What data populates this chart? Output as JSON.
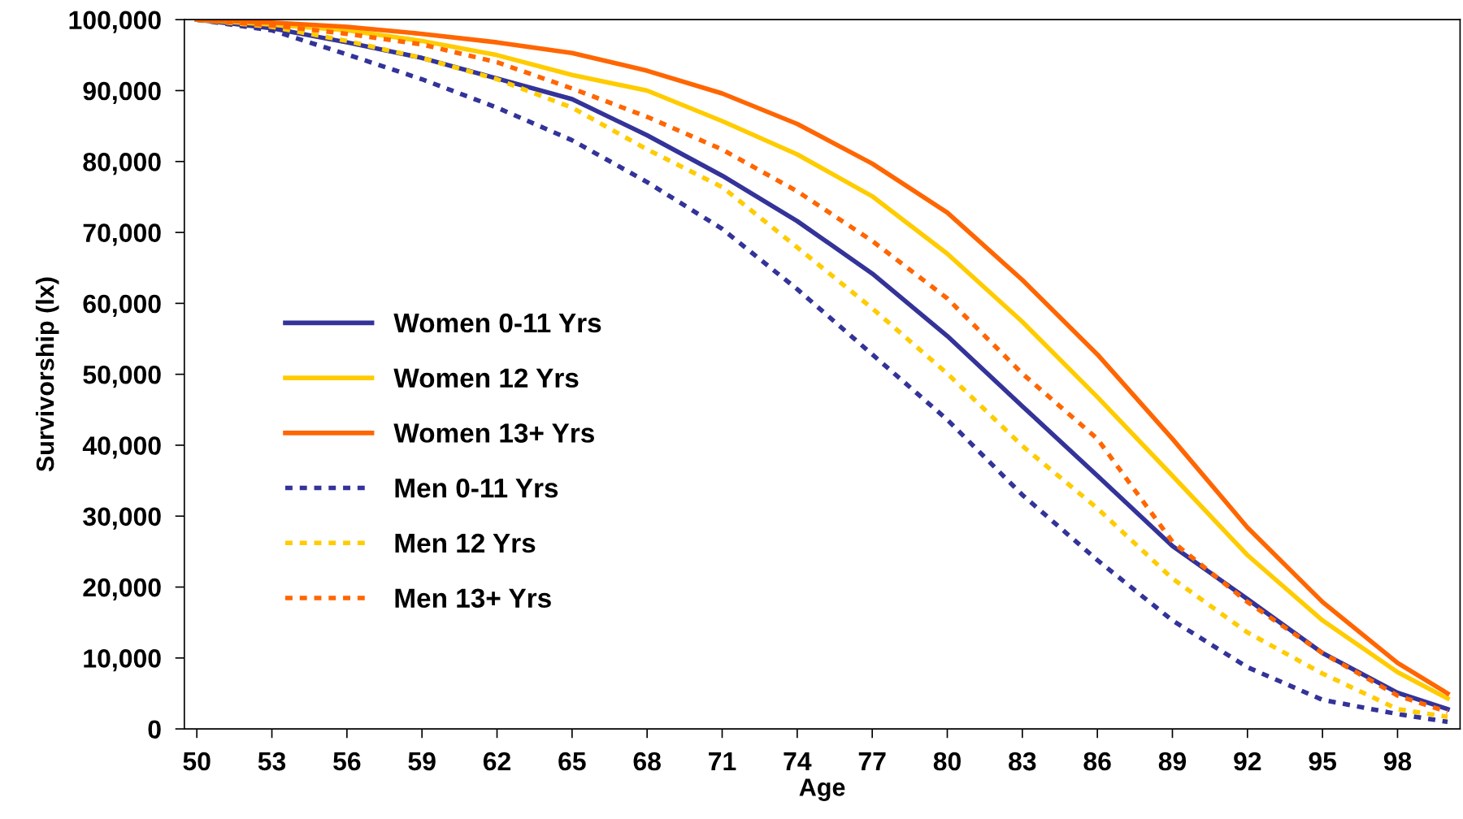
{
  "chart_data": {
    "type": "line",
    "xlabel": "Age",
    "ylabel": "Survivorship (lx)",
    "x": [
      50,
      53,
      56,
      59,
      62,
      65,
      68,
      71,
      74,
      77,
      80,
      83,
      86,
      89,
      92,
      95,
      98,
      100
    ],
    "xlim": [
      49.5,
      100.5
    ],
    "xticks": [
      50,
      53,
      56,
      59,
      62,
      65,
      68,
      71,
      74,
      77,
      80,
      83,
      86,
      89,
      92,
      95,
      98
    ],
    "ylim": [
      0,
      100000
    ],
    "yticks": [
      {
        "value": 0,
        "label": "0"
      },
      {
        "value": 10000,
        "label": "10,000"
      },
      {
        "value": 20000,
        "label": "20,000"
      },
      {
        "value": 30000,
        "label": "30,000"
      },
      {
        "value": 40000,
        "label": "40,000"
      },
      {
        "value": 50000,
        "label": "50,000"
      },
      {
        "value": 60000,
        "label": "60,000"
      },
      {
        "value": 70000,
        "label": "70,000"
      },
      {
        "value": 80000,
        "label": "80,000"
      },
      {
        "value": 90000,
        "label": "90,000"
      },
      {
        "value": 100000,
        "label": "100,000"
      }
    ],
    "grid": false,
    "legend": "left",
    "marker": "none",
    "series": [
      {
        "name": "Women 0-11 Yrs",
        "color": "#333399",
        "line_style": "solid",
        "values": [
          100000,
          98800,
          96800,
          94600,
          91700,
          88800,
          83700,
          78000,
          71600,
          64200,
          55400,
          45500,
          35700,
          25800,
          18300,
          10700,
          5100,
          2800
        ]
      },
      {
        "name": "Women 12 Yrs",
        "color": "#ffcc00",
        "line_style": "solid",
        "values": [
          100000,
          99300,
          98500,
          97000,
          95000,
          92200,
          90000,
          85700,
          81000,
          75100,
          67000,
          57400,
          46800,
          35700,
          24500,
          15300,
          8000,
          4300
        ]
      },
      {
        "name": "Women 13+ Yrs",
        "color": "#ff6600",
        "line_style": "solid",
        "values": [
          100000,
          99600,
          99000,
          98000,
          96800,
          95300,
          92800,
          89600,
          85300,
          79700,
          72800,
          63300,
          52800,
          40900,
          28400,
          17900,
          9300,
          5000
        ]
      },
      {
        "name": "Men 0-11 Yrs",
        "color": "#333399",
        "line_style": "dashed",
        "values": [
          100000,
          98500,
          95100,
          91600,
          87600,
          83000,
          77100,
          70500,
          62000,
          52800,
          43600,
          33000,
          23800,
          15300,
          8700,
          4100,
          2100,
          1000
        ]
      },
      {
        "name": "Men 12 Yrs",
        "color": "#ffcc00",
        "line_style": "dashed",
        "values": [
          100000,
          99000,
          97000,
          94600,
          91600,
          87600,
          81700,
          76400,
          67900,
          59300,
          50100,
          39900,
          31100,
          21200,
          13600,
          7800,
          2800,
          1700
        ]
      },
      {
        "name": "Men 13+ Yrs",
        "color": "#ff6600",
        "line_style": "dashed",
        "values": [
          100000,
          99200,
          98000,
          96500,
          94000,
          90300,
          86300,
          81700,
          75800,
          68800,
          60700,
          50100,
          40900,
          26400,
          17900,
          10700,
          4700,
          2400
        ]
      }
    ]
  }
}
